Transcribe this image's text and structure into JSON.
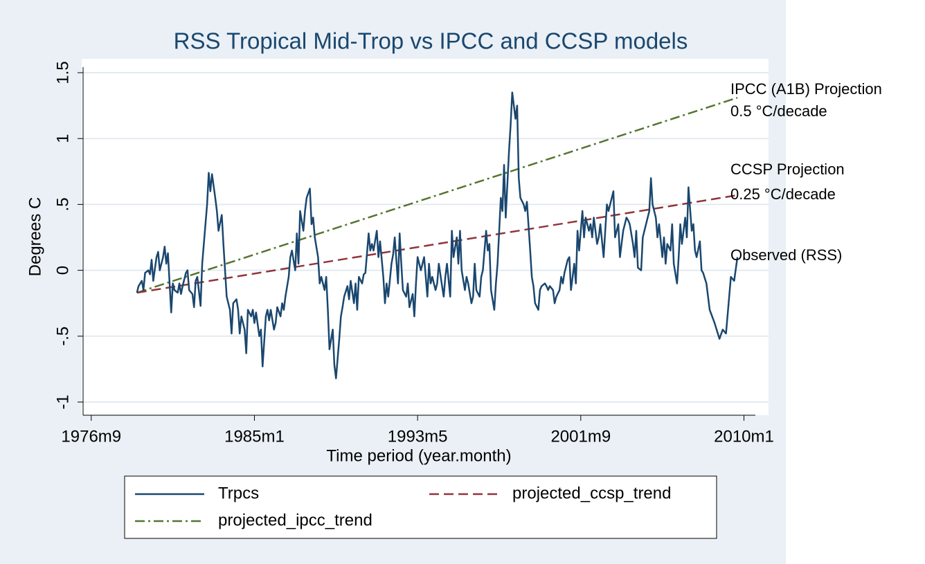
{
  "chart_data": {
    "type": "line",
    "title": "RSS Tropical Mid-Trop vs IPCC and CCSP models",
    "x_label": "Time period (year.month)",
    "y_label": "Degrees C",
    "xlim": [
      195,
      607
    ],
    "ylim": [
      -1.1,
      1.6
    ],
    "xticks": [
      {
        "value": 200,
        "label": "1976m9"
      },
      {
        "value": 300,
        "label": "1985m1"
      },
      {
        "value": 400,
        "label": "1993m5"
      },
      {
        "value": 500,
        "label": "2001m9"
      },
      {
        "value": 600,
        "label": "2010m1"
      }
    ],
    "yticks": [
      1.5,
      1,
      {
        "value": 0.5,
        "label": ".5"
      },
      0,
      {
        "value": -0.5,
        "label": "-.5"
      },
      -1
    ],
    "grid": true,
    "annotations": [
      "IPCC (A1B) Projection",
      "0.5 °C/decade",
      "CCSP Projection",
      "0.25 °C/decade",
      "Observed (RSS)"
    ],
    "series": [
      {
        "name": "Trpcs",
        "color": "#1a476f",
        "dash": "solid",
        "x": [
          228,
          229,
          231,
          232,
          233,
          235,
          236,
          237,
          238,
          240,
          241,
          242,
          244,
          245,
          246,
          247,
          249,
          250,
          251,
          253,
          254,
          255,
          256,
          258,
          259,
          260,
          262,
          263,
          264,
          265,
          267,
          268,
          269,
          271,
          272,
          273,
          274,
          276,
          277,
          278,
          280,
          281,
          282,
          283,
          285,
          286,
          287,
          289,
          290,
          291,
          292,
          294,
          295,
          296,
          298,
          299,
          300,
          301,
          303,
          304,
          305,
          307,
          308,
          309,
          310,
          312,
          313,
          314,
          316,
          317,
          318,
          319,
          321,
          322,
          323,
          325,
          326,
          327,
          328,
          330,
          331,
          332,
          334,
          335,
          336,
          337,
          339,
          340,
          341,
          343,
          344,
          345,
          346,
          348,
          349,
          350,
          352,
          353,
          354,
          355,
          357,
          358,
          359,
          361,
          362,
          363,
          364,
          366,
          367,
          368,
          370,
          371,
          372,
          373,
          375,
          376,
          377,
          379,
          380,
          381,
          382,
          384,
          385,
          386,
          388,
          389,
          390,
          391,
          393,
          394,
          395,
          397,
          398,
          399,
          400,
          402,
          403,
          404,
          406,
          407,
          408,
          409,
          411,
          412,
          413,
          415,
          416,
          417,
          418,
          420,
          421,
          422,
          424,
          425,
          426,
          427,
          429,
          430,
          431,
          433,
          434,
          435,
          436,
          438,
          439,
          440,
          442,
          443,
          444,
          445,
          447,
          448,
          449,
          451,
          452,
          453,
          454,
          456,
          457,
          458,
          460,
          461,
          462,
          463,
          465,
          466,
          467,
          469,
          470,
          471,
          472,
          474,
          475,
          476,
          478,
          479,
          480,
          481,
          483,
          484,
          485,
          487,
          488,
          489,
          490,
          492,
          493,
          494,
          496,
          497,
          498,
          499,
          501,
          502,
          503,
          505,
          506,
          507,
          508,
          510,
          511,
          512,
          514,
          515,
          516,
          517,
          519,
          520,
          521,
          523,
          524,
          525,
          526,
          528,
          529,
          530,
          532,
          533,
          534,
          535,
          537,
          538,
          539,
          541,
          542,
          543,
          544,
          546,
          547,
          548,
          550,
          551,
          552,
          553,
          555,
          556,
          557,
          559,
          560,
          561,
          562,
          564,
          565,
          566,
          568,
          569,
          570,
          571,
          573,
          574,
          575,
          577,
          578,
          579,
          582,
          585,
          587,
          589,
          592,
          594,
          596
        ],
        "values": [
          -0.17,
          -0.12,
          -0.08,
          -0.15,
          -0.02,
          0.0,
          -0.03,
          0.08,
          -0.08,
          0.1,
          0.14,
          0.0,
          0.1,
          0.18,
          0.05,
          0.13,
          -0.32,
          -0.1,
          -0.15,
          -0.17,
          -0.1,
          -0.18,
          -0.12,
          -0.02,
          0.0,
          -0.15,
          -0.18,
          -0.28,
          -0.08,
          -0.05,
          -0.27,
          0.05,
          0.2,
          0.5,
          0.74,
          0.6,
          0.73,
          0.55,
          0.45,
          0.3,
          0.42,
          0.2,
          0.0,
          -0.2,
          -0.3,
          -0.48,
          -0.25,
          -0.22,
          -0.3,
          -0.48,
          -0.35,
          -0.45,
          -0.63,
          -0.3,
          -0.35,
          -0.3,
          -0.4,
          -0.32,
          -0.5,
          -0.45,
          -0.73,
          -0.35,
          -0.3,
          -0.38,
          -0.3,
          -0.45,
          -0.4,
          -0.28,
          -0.35,
          -0.25,
          -0.3,
          -0.2,
          -0.05,
          0.1,
          0.15,
          0.0,
          0.28,
          0.05,
          0.45,
          0.3,
          0.45,
          0.55,
          0.62,
          0.35,
          0.4,
          0.25,
          0.1,
          -0.1,
          -0.05,
          -0.15,
          -0.05,
          -0.3,
          -0.6,
          -0.45,
          -0.72,
          -0.82,
          -0.52,
          -0.35,
          -0.28,
          -0.2,
          -0.12,
          -0.22,
          -0.08,
          -0.25,
          -0.1,
          -0.3,
          -0.05,
          -0.1,
          -0.03,
          -0.02,
          0.28,
          0.15,
          0.2,
          0.15,
          0.3,
          0.1,
          0.22,
          -0.05,
          -0.25,
          -0.1,
          -0.2,
          0.05,
          0.12,
          0.25,
          -0.1,
          0.28,
          0.05,
          -0.15,
          -0.2,
          -0.1,
          -0.28,
          -0.18,
          -0.35,
          -0.1,
          0.1,
          0.0,
          0.05,
          0.1,
          -0.2,
          0.05,
          -0.1,
          -0.05,
          -0.15,
          -0.1,
          0.05,
          -0.12,
          -0.2,
          -0.05,
          0.05,
          -0.2,
          0.3,
          0.1,
          0.25,
          0.05,
          0.3,
          0.0,
          -0.15,
          -0.05,
          -0.1,
          -0.25,
          -0.2,
          0.05,
          -0.15,
          -0.2,
          -0.05,
          0.0,
          0.3,
          0.15,
          0.2,
          -0.15,
          -0.3,
          -0.1,
          0.05,
          0.55,
          0.45,
          0.8,
          0.4,
          0.9,
          1.1,
          1.35,
          1.15,
          1.25,
          0.7,
          0.55,
          0.5,
          0.45,
          0.52,
          0.15,
          -0.05,
          -0.12,
          -0.25,
          -0.3,
          -0.15,
          -0.12,
          -0.1,
          -0.12,
          -0.15,
          -0.12,
          -0.15,
          -0.25,
          -0.2,
          -0.15,
          -0.05,
          -0.1,
          -0.02,
          0.08,
          0.1,
          -0.15,
          0.05,
          -0.1,
          0.3,
          0.15,
          0.45,
          0.25,
          0.4,
          0.3,
          0.35,
          0.25,
          0.4,
          0.2,
          0.25,
          0.35,
          0.1,
          0.3,
          0.5,
          0.45,
          0.55,
          0.6,
          0.25,
          0.35,
          0.1,
          0.2,
          0.3,
          0.4,
          0.38,
          0.35,
          0.2,
          0.1,
          0.3,
          0.02,
          0.0,
          0.25,
          0.3,
          0.4,
          0.45,
          0.7,
          0.5,
          0.4,
          0.25,
          0.35,
          0.1,
          0.25,
          0.05,
          0.2,
          0.15,
          0.35,
          0.05,
          -0.1,
          0.1,
          0.35,
          0.2,
          0.4,
          0.25,
          0.63,
          0.3,
          0.35,
          0.15,
          0.1,
          0.22,
          0.0,
          -0.02,
          -0.1,
          -0.2,
          -0.3,
          -0.4,
          -0.52,
          -0.45,
          -0.48,
          -0.05,
          -0.08,
          0.1
        ]
      },
      {
        "name": "projected_ccsp_trend",
        "color": "#90353b",
        "dash": "dash",
        "x": [
          228,
          596
        ],
        "values": [
          -0.17,
          0.57
        ]
      },
      {
        "name": "projected_ipcc_trend",
        "color": "#55752f",
        "dash": "dashdot",
        "x": [
          228,
          596
        ],
        "values": [
          -0.17,
          1.31
        ]
      }
    ]
  }
}
